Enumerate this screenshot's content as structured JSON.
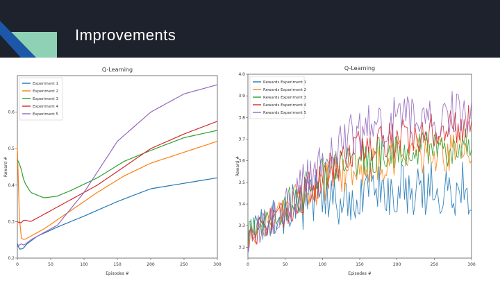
{
  "slide": {
    "title": "Improvements"
  },
  "colors": {
    "header_bg": "#1d222c",
    "accent_blue": "#1c57a8",
    "accent_green": "#8ed1b4"
  },
  "chart_data": [
    {
      "type": "line",
      "title": "Q-Learning",
      "xlabel": "Episodes #",
      "ylabel": "Reward #",
      "xlim": [
        0,
        300
      ],
      "ylim": [
        0.2,
        0.7
      ],
      "xticks": [
        "0",
        "50",
        "100",
        "150",
        "200",
        "250",
        "300"
      ],
      "yticks": [
        "0.2",
        "0.3",
        "0.4",
        "0.5",
        "0.6"
      ],
      "legend_position": "top-left",
      "series": [
        {
          "name": "Experiment 1",
          "color": "#1f77b4",
          "x": [
            0,
            3,
            8,
            15,
            30,
            60,
            100,
            150,
            200,
            250,
            300
          ],
          "y": [
            0.24,
            0.225,
            0.225,
            0.24,
            0.26,
            0.285,
            0.315,
            0.355,
            0.39,
            0.405,
            0.42
          ]
        },
        {
          "name": "Experiment 2",
          "color": "#ff7f0e",
          "x": [
            0,
            2,
            6,
            10,
            20,
            40,
            80,
            120,
            160,
            200,
            250,
            300
          ],
          "y": [
            0.505,
            0.33,
            0.255,
            0.25,
            0.26,
            0.28,
            0.33,
            0.38,
            0.425,
            0.46,
            0.49,
            0.52
          ]
        },
        {
          "name": "Experiment 3",
          "color": "#2ca02c",
          "x": [
            0,
            5,
            10,
            20,
            40,
            60,
            80,
            120,
            160,
            200,
            250,
            300
          ],
          "y": [
            0.47,
            0.45,
            0.41,
            0.38,
            0.365,
            0.37,
            0.385,
            0.42,
            0.465,
            0.495,
            0.53,
            0.55
          ]
        },
        {
          "name": "Experiment 4",
          "color": "#d62728",
          "x": [
            0,
            5,
            10,
            20,
            30,
            50,
            80,
            120,
            160,
            200,
            250,
            300
          ],
          "y": [
            0.3,
            0.295,
            0.305,
            0.3,
            0.31,
            0.33,
            0.36,
            0.4,
            0.45,
            0.5,
            0.54,
            0.575
          ]
        },
        {
          "name": "Experiment 5",
          "color": "#9467bd",
          "x": [
            0,
            5,
            10,
            20,
            40,
            60,
            100,
            150,
            200,
            250,
            300
          ],
          "y": [
            0.23,
            0.24,
            0.235,
            0.25,
            0.27,
            0.29,
            0.38,
            0.52,
            0.6,
            0.65,
            0.675
          ]
        }
      ]
    },
    {
      "type": "line",
      "title": "Q-Learning",
      "xlabel": "Episodes #",
      "ylabel": "Reward #",
      "xlim": [
        0,
        300
      ],
      "ylim": [
        3.15,
        4.0
      ],
      "xticks": [
        "0",
        "50",
        "100",
        "150",
        "200",
        "250",
        "300"
      ],
      "yticks": [
        "3.2",
        "3.3",
        "3.4",
        "3.5",
        "3.6",
        "3.7",
        "3.8",
        "3.9",
        "4.0"
      ],
      "legend_position": "top-left",
      "series": [
        {
          "name": "Rewards Experiment 1",
          "color": "#1f77b4",
          "noise": 0.13,
          "x": [
            0,
            30,
            60,
            90,
            120,
            150,
            200,
            250,
            300
          ],
          "y": [
            3.25,
            3.32,
            3.38,
            3.42,
            3.42,
            3.45,
            3.47,
            3.47,
            3.48
          ]
        },
        {
          "name": "Rewards Experiment 2",
          "color": "#ff7f0e",
          "noise": 0.09,
          "x": [
            0,
            30,
            60,
            90,
            120,
            150,
            200,
            250,
            300
          ],
          "y": [
            3.25,
            3.32,
            3.4,
            3.47,
            3.53,
            3.57,
            3.61,
            3.63,
            3.65
          ]
        },
        {
          "name": "Rewards Experiment 3",
          "color": "#2ca02c",
          "noise": 0.09,
          "x": [
            0,
            30,
            60,
            90,
            120,
            150,
            200,
            250,
            300
          ],
          "y": [
            3.27,
            3.33,
            3.42,
            3.5,
            3.57,
            3.62,
            3.65,
            3.66,
            3.67
          ]
        },
        {
          "name": "Rewards Experiment 4",
          "color": "#d62728",
          "noise": 0.09,
          "x": [
            0,
            30,
            60,
            90,
            120,
            150,
            200,
            250,
            300
          ],
          "y": [
            3.24,
            3.32,
            3.4,
            3.5,
            3.58,
            3.66,
            3.7,
            3.74,
            3.77
          ]
        },
        {
          "name": "Rewards Experiment 5",
          "color": "#9467bd",
          "noise": 0.11,
          "x": [
            0,
            30,
            60,
            90,
            120,
            150,
            200,
            250,
            300
          ],
          "y": [
            3.24,
            3.32,
            3.42,
            3.55,
            3.66,
            3.74,
            3.79,
            3.81,
            3.82
          ]
        }
      ]
    }
  ]
}
